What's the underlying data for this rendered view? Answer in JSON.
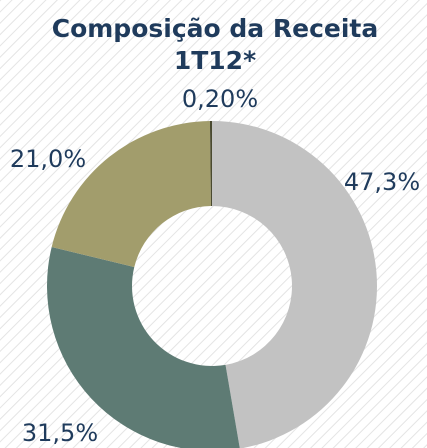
{
  "chart_data": {
    "type": "donut",
    "title": "Composição da Receita",
    "subtitle": "1T12*",
    "categories": [
      null,
      null,
      null,
      null
    ],
    "values": [
      47.3,
      31.5,
      21.0,
      0.2
    ],
    "value_labels": [
      "47,3%",
      "31,5%",
      "21,0%",
      "0,20%"
    ],
    "colors": [
      "#c2c2c2",
      "#5e7b74",
      "#a29d6c",
      "#4a4a30"
    ]
  }
}
